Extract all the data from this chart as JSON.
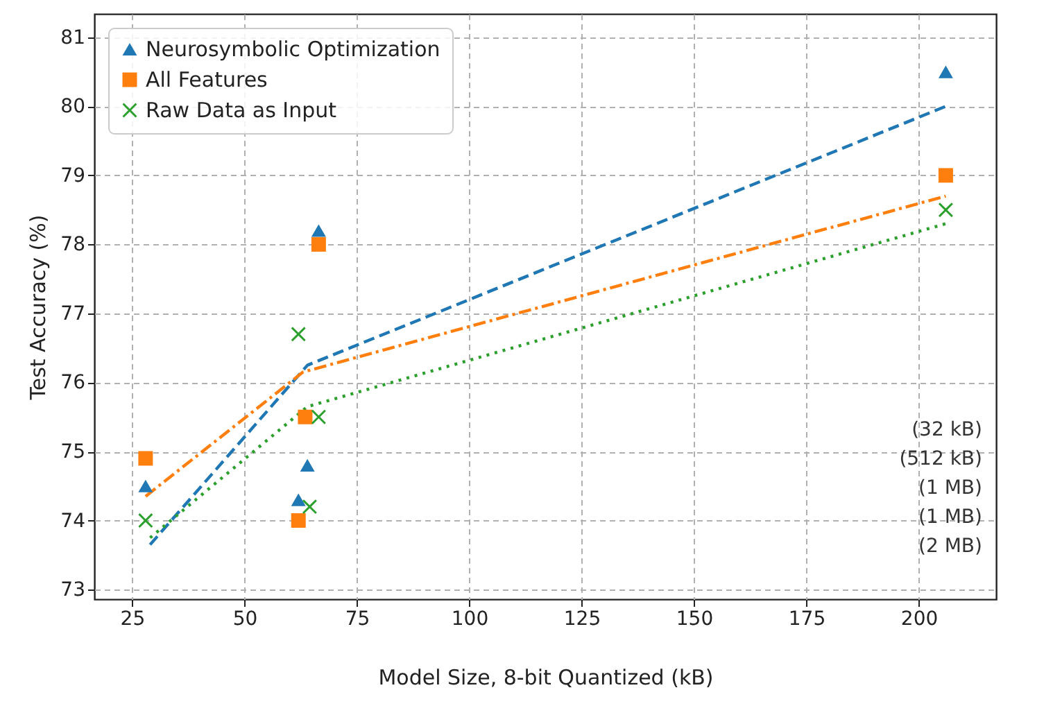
{
  "chart_data": {
    "type": "scatter",
    "xlabel": "Model Size, 8-bit Quantized (kB)",
    "ylabel": "Test Accuracy (%)",
    "xlim": [
      16.6,
      217.2
    ],
    "ylim": [
      72.86,
      81.34
    ],
    "xticks": [
      25,
      50,
      75,
      100,
      125,
      150,
      175,
      200
    ],
    "yticks": [
      73,
      74,
      75,
      76,
      77,
      78,
      79,
      80,
      81
    ],
    "grid": true,
    "legend": "top left",
    "series": [
      {
        "type": "line",
        "color": "#1f77b4",
        "line_style": "dashed",
        "x": [
          29,
          64,
          206
        ],
        "values": [
          73.65,
          76.25,
          80.0
        ]
      },
      {
        "type": "line",
        "color": "#ff7f0e",
        "line_style": "dashdot",
        "x": [
          28,
          63,
          206
        ],
        "values": [
          74.35,
          76.15,
          78.7
        ]
      },
      {
        "type": "line",
        "color": "#2ca02c",
        "line_style": "dotted",
        "x": [
          29,
          64,
          206
        ],
        "values": [
          73.75,
          75.65,
          78.3
        ]
      },
      {
        "type": "scatter",
        "name": "Neurosymbolic Optimization",
        "color": "#1f77b4",
        "marker": "triangle",
        "x": [
          28,
          62,
          64,
          66.5,
          206
        ],
        "values": [
          74.5,
          74.3,
          74.8,
          78.2,
          80.5
        ]
      },
      {
        "type": "scatter",
        "name": "All Features",
        "color": "#ff7f0e",
        "marker": "square",
        "x": [
          28,
          62,
          63.5,
          66.5,
          206
        ],
        "values": [
          74.9,
          74.0,
          75.5,
          78.0,
          79.0
        ]
      },
      {
        "type": "scatter",
        "name": "Raw Data as Input",
        "color": "#2ca02c",
        "marker": "cross",
        "x": [
          28,
          62,
          64.5,
          66.5,
          206
        ],
        "values": [
          74.0,
          76.7,
          74.2,
          75.5,
          78.5
        ]
      }
    ],
    "annotations": [
      "(32 kB)",
      "(512 kB)",
      "(1 MB)",
      "(1 MB)",
      "(2 MB)"
    ]
  }
}
